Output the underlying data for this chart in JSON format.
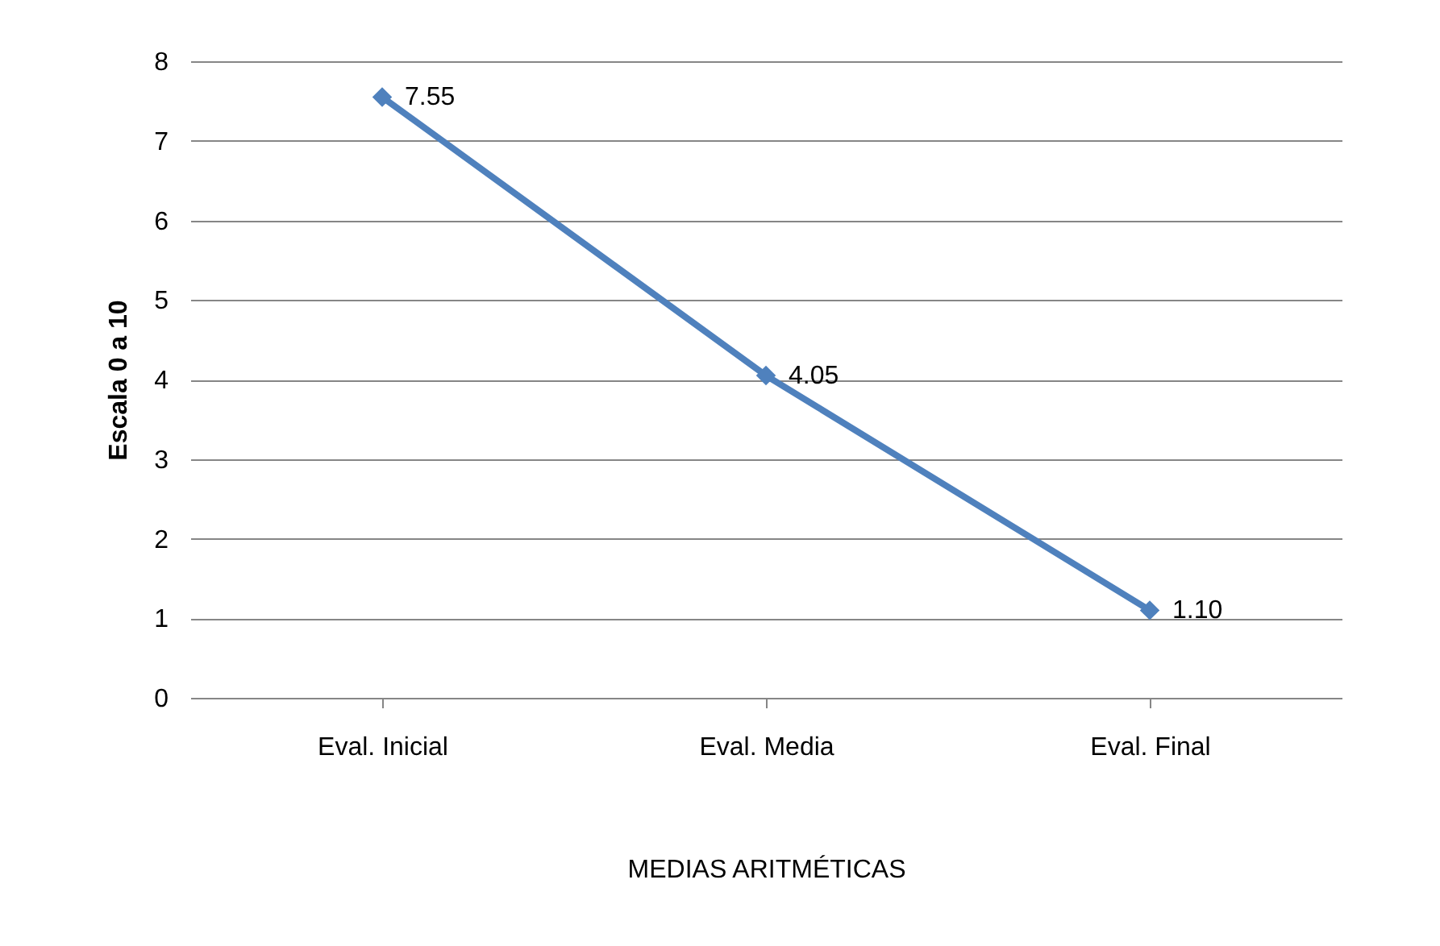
{
  "chart_data": {
    "type": "line",
    "xlabel": "MEDIAS ARITMÉTICAS",
    "ylabel": "Escala 0 a 10",
    "categories": [
      "Eval. Inicial",
      "Eval. Media",
      "Eval. Final"
    ],
    "series": [
      {
        "color": "#4f81bd",
        "values": [
          7.55,
          4.05,
          1.1
        ],
        "value_labels": [
          "7.55",
          "4.05",
          "1.10"
        ]
      }
    ],
    "ylim": [
      0,
      8
    ],
    "yticks": [
      0,
      1,
      2,
      3,
      4,
      5,
      6,
      7,
      8
    ],
    "grid": "y",
    "marker": "diamond",
    "line_style": "solid"
  }
}
